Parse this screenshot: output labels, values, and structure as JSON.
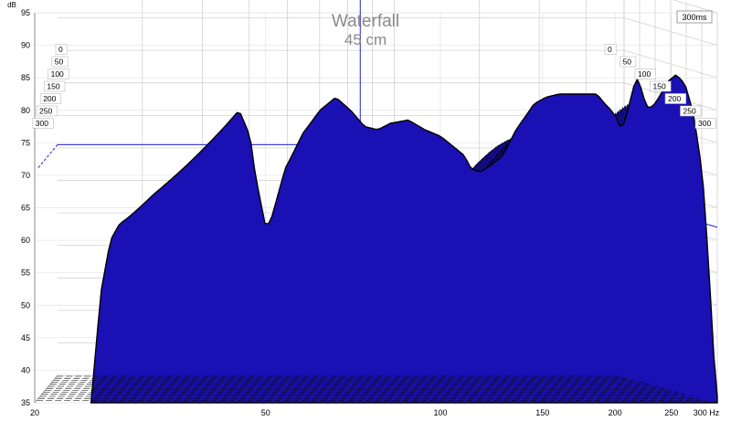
{
  "chart_data": {
    "type": "waterfall",
    "title": "Waterfall",
    "subtitle": "45 cm",
    "ylabel": "dB",
    "xlabel": "Hz",
    "time_label": "300ms",
    "x_scale": "log",
    "xlim": [
      20,
      300
    ],
    "ylim": [
      35,
      95
    ],
    "grid": true,
    "x_ticks": [
      {
        "value": 20,
        "label": "20"
      },
      {
        "value": 50,
        "label": "50"
      },
      {
        "value": 100,
        "label": "100"
      },
      {
        "value": 150,
        "label": "150"
      },
      {
        "value": 200,
        "label": "200"
      },
      {
        "value": 250,
        "label": "250"
      },
      {
        "value": 300,
        "label": "300 Hz"
      }
    ],
    "y_ticks": [
      {
        "value": 35,
        "label": "35"
      },
      {
        "value": 40,
        "label": "40"
      },
      {
        "value": 45,
        "label": "45"
      },
      {
        "value": 50,
        "label": "50"
      },
      {
        "value": 55,
        "label": "55"
      },
      {
        "value": 60,
        "label": "60"
      },
      {
        "value": 65,
        "label": "65"
      },
      {
        "value": 70,
        "label": "70"
      },
      {
        "value": 75,
        "label": "75"
      },
      {
        "value": 80,
        "label": "80"
      },
      {
        "value": 85,
        "label": "85"
      },
      {
        "value": 90,
        "label": "90"
      },
      {
        "value": 95,
        "label": "95"
      }
    ],
    "time_ticks_ms": [
      "0",
      "50",
      "100",
      "150",
      "200",
      "250",
      "300"
    ],
    "cursor_x": 85,
    "colors": {
      "fill": "#1a10b4",
      "outline": "#000000",
      "grid": "#cccccc",
      "cursor": "#2222cc",
      "title": "#888888"
    },
    "front_slice": {
      "time_ms": 0,
      "points": [
        [
          25,
          35
        ],
        [
          26,
          52
        ],
        [
          27,
          60
        ],
        [
          28,
          62.5
        ],
        [
          29,
          63.5
        ],
        [
          32,
          67
        ],
        [
          35,
          70
        ],
        [
          38,
          73
        ],
        [
          41,
          76
        ],
        [
          43,
          78
        ],
        [
          45,
          80
        ],
        [
          47,
          76
        ],
        [
          48,
          70
        ],
        [
          50,
          62
        ],
        [
          51,
          63
        ],
        [
          54,
          71
        ],
        [
          58,
          76.5
        ],
        [
          62,
          80
        ],
        [
          66,
          82
        ],
        [
          70,
          80
        ],
        [
          74,
          77.5
        ],
        [
          78,
          77
        ],
        [
          82,
          78
        ],
        [
          88,
          78.5
        ],
        [
          94,
          77
        ],
        [
          100,
          76
        ],
        [
          105,
          74.5
        ],
        [
          110,
          73
        ],
        [
          113,
          71
        ],
        [
          117,
          70.5
        ],
        [
          122,
          71.5
        ],
        [
          128,
          73
        ],
        [
          135,
          77
        ],
        [
          145,
          81
        ],
        [
          152,
          82
        ],
        [
          160,
          82.5
        ],
        [
          170,
          82.5
        ],
        [
          180,
          82.5
        ],
        [
          186,
          82.5
        ],
        [
          192,
          81
        ],
        [
          197,
          80
        ],
        [
          202,
          78.5
        ],
        [
          205,
          77
        ],
        [
          209,
          79
        ],
        [
          215,
          83.5
        ],
        [
          219,
          85
        ],
        [
          224,
          82
        ],
        [
          227,
          80.5
        ],
        [
          232,
          80.5
        ],
        [
          238,
          82
        ],
        [
          247,
          84.5
        ],
        [
          255,
          85.5
        ],
        [
          264,
          84
        ],
        [
          272,
          80
        ],
        [
          279,
          74
        ],
        [
          284,
          68
        ],
        [
          289,
          58
        ],
        [
          293,
          49
        ],
        [
          296,
          42
        ],
        [
          300,
          36
        ]
      ]
    }
  }
}
